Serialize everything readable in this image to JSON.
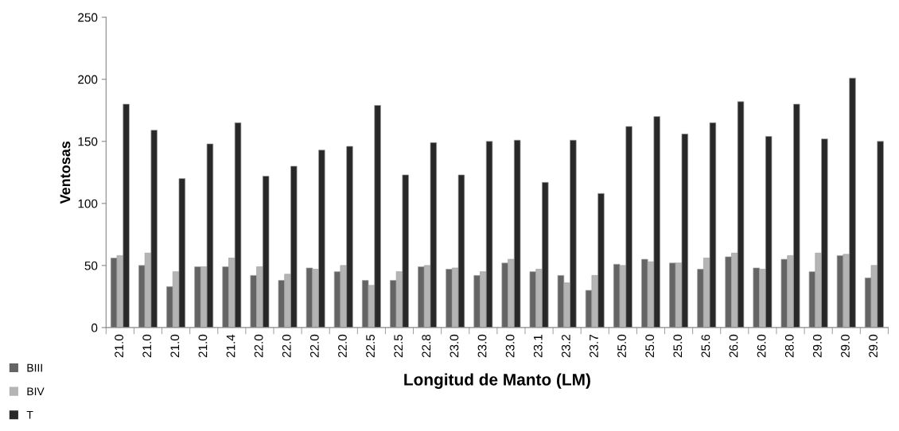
{
  "chart_data": {
    "type": "bar",
    "xlabel": "Longitud de Manto (LM)",
    "ylabel": "Ventosas",
    "categories": [
      "21.0",
      "21.0",
      "21.0",
      "21.0",
      "21.4",
      "22.0",
      "22.0",
      "22.0",
      "22.0",
      "22.5",
      "22.5",
      "22.8",
      "23.0",
      "23.0",
      "23.0",
      "23.1",
      "23.2",
      "23.7",
      "25.0",
      "25.0",
      "25.0",
      "25.6",
      "26.0",
      "26.0",
      "28.0",
      "29.0",
      "29.0",
      "29.0"
    ],
    "series": [
      {
        "name": "BIII",
        "color": "#646464",
        "values": [
          56,
          50,
          33,
          49,
          49,
          42,
          38,
          48,
          45,
          38,
          38,
          49,
          47,
          42,
          52,
          45,
          42,
          30,
          51,
          55,
          52,
          47,
          57,
          48,
          55,
          45,
          58,
          40
        ]
      },
      {
        "name": "BIV",
        "color": "#b4b4b4",
        "values": [
          58,
          60,
          45,
          49,
          56,
          49,
          43,
          47,
          50,
          34,
          45,
          50,
          48,
          45,
          55,
          47,
          36,
          42,
          50,
          53,
          52,
          56,
          60,
          47,
          58,
          60,
          59,
          50
        ]
      },
      {
        "name": "T",
        "color": "#282828",
        "values": [
          180,
          159,
          120,
          148,
          165,
          122,
          130,
          143,
          146,
          179,
          123,
          149,
          123,
          150,
          151,
          117,
          151,
          108,
          162,
          170,
          156,
          165,
          182,
          154,
          180,
          152,
          201,
          150
        ]
      }
    ],
    "ylim": [
      0,
      250
    ],
    "yticks": [
      0,
      50,
      100,
      150,
      200,
      250
    ],
    "grid": false,
    "legend": "bottom left"
  }
}
